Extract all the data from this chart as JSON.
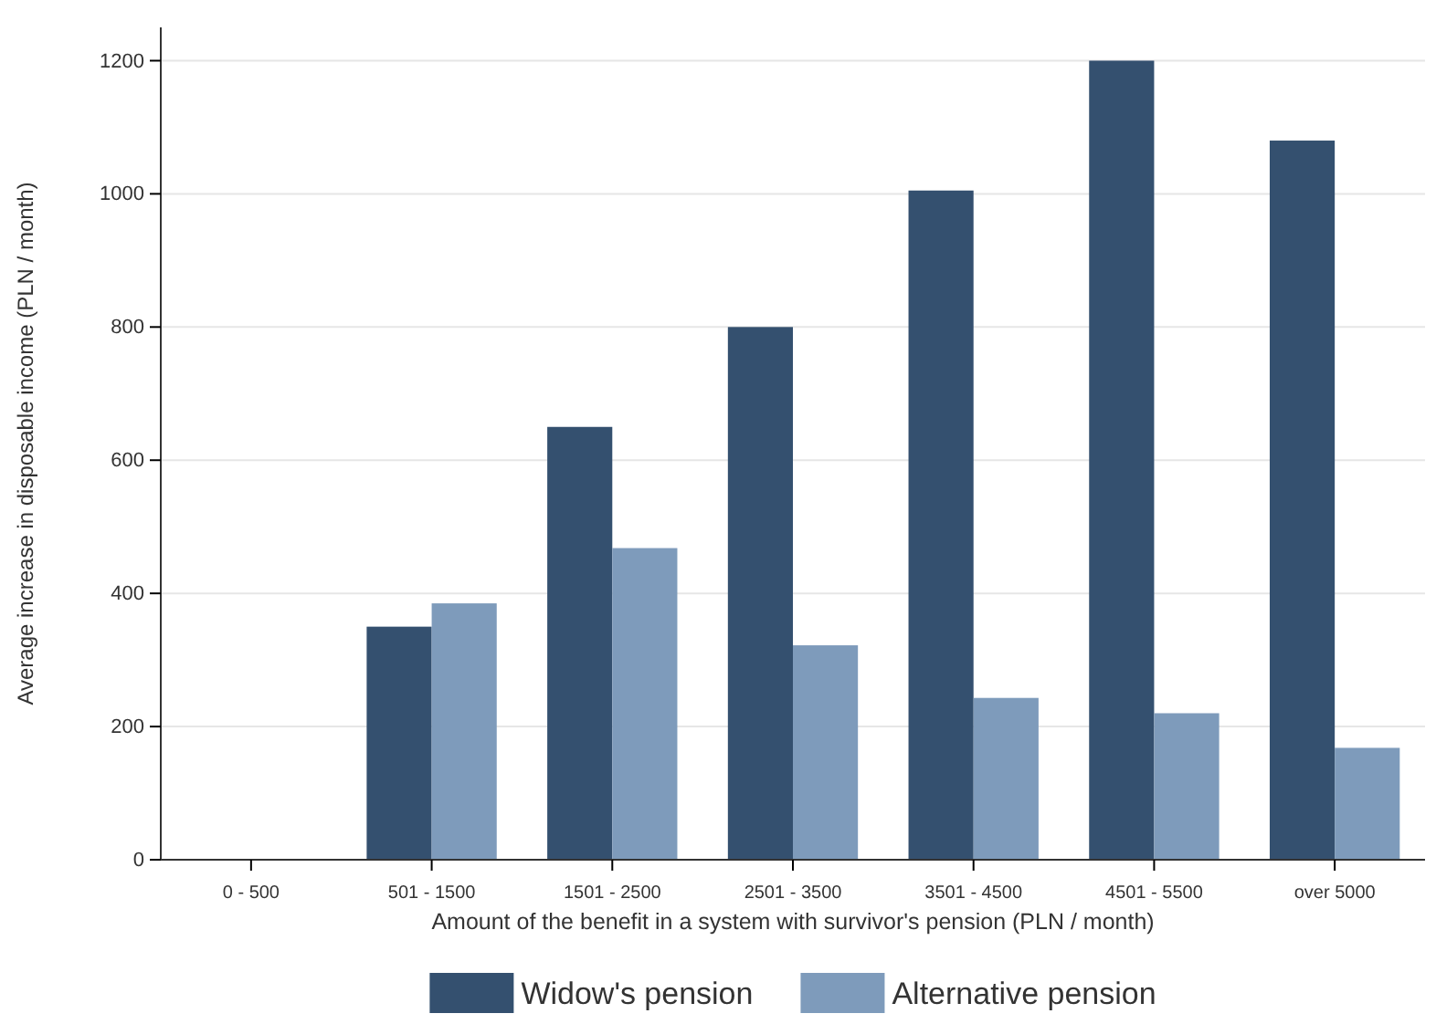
{
  "chart_data": {
    "type": "bar",
    "xlabel": "Amount of the benefit in a system with survivor's pension (PLN / month)",
    "ylabel": "Average increase in disposable income (PLN / month)",
    "categories": [
      "0 - 500",
      "501 - 1500",
      "1501 - 2500",
      "2501 - 3500",
      "3501 - 4500",
      "4501 - 5500",
      "over 5000"
    ],
    "series": [
      {
        "name": "Widow's pension",
        "color": "#34506f",
        "values": [
          null,
          350,
          650,
          800,
          1005,
          1200,
          1080
        ]
      },
      {
        "name": "Alternative pension",
        "color": "#7e9bbb",
        "values": [
          null,
          385,
          468,
          322,
          243,
          220,
          168
        ]
      }
    ],
    "ylim": [
      0,
      1250
    ],
    "yticks": [
      0,
      200,
      400,
      600,
      800,
      1000,
      1200
    ],
    "grid": "y",
    "legend": "bottom"
  }
}
